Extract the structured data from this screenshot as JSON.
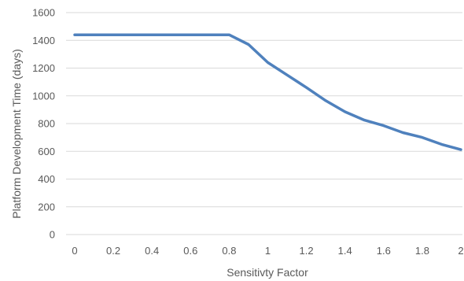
{
  "chart_data": {
    "type": "line",
    "xlabel": "Sensitivty Factor",
    "ylabel": "Platform Development  Time (days)",
    "xlim": [
      0,
      2
    ],
    "ylim": [
      0,
      1600
    ],
    "x_ticks": [
      0,
      0.2,
      0.4,
      0.6,
      0.8,
      1,
      1.2,
      1.4,
      1.6,
      1.8,
      2
    ],
    "x_tick_labels": [
      "0",
      "0.2",
      "0.4",
      "0.6",
      "0.8",
      "1",
      "1.2",
      "1.4",
      "1.6",
      "1.8",
      "2"
    ],
    "y_ticks": [
      0,
      200,
      400,
      600,
      800,
      1000,
      1200,
      1400,
      1600
    ],
    "y_tick_labels": [
      "0",
      "200",
      "400",
      "600",
      "800",
      "1000",
      "1200",
      "1400",
      "1600"
    ],
    "grid": "horizontal",
    "legend": "none",
    "series": [
      {
        "color": "#4f81bd",
        "x": [
          0,
          0.1,
          0.2,
          0.3,
          0.4,
          0.5,
          0.6,
          0.7,
          0.8,
          0.9,
          1.0,
          1.1,
          1.2,
          1.3,
          1.4,
          1.5,
          1.6,
          1.7,
          1.8,
          1.9,
          2.0
        ],
        "y": [
          1440,
          1440,
          1440,
          1440,
          1440,
          1440,
          1440,
          1440,
          1440,
          1370,
          1240,
          1150,
          1060,
          965,
          885,
          825,
          785,
          735,
          700,
          650,
          612
        ]
      }
    ]
  }
}
